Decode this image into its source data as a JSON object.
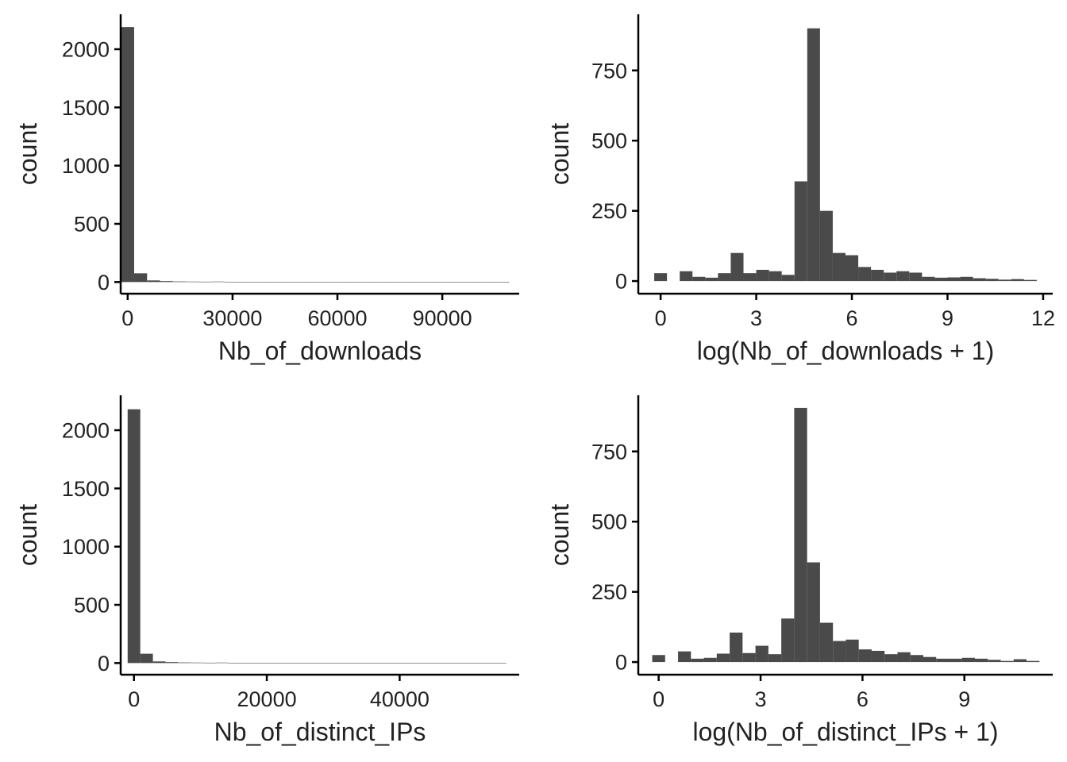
{
  "chart_data": [
    {
      "type": "bar",
      "xlabel": "Nb_of_downloads",
      "ylabel": "count",
      "xlim": [
        -2000,
        112000
      ],
      "ylim": [
        -100,
        2300
      ],
      "x_ticks": [
        0,
        30000,
        60000,
        90000
      ],
      "x_tick_labels": [
        "0",
        "30000",
        "60000",
        "90000"
      ],
      "y_ticks": [
        0,
        500,
        1000,
        1500,
        2000
      ],
      "y_tick_labels": [
        "0",
        "500",
        "1000",
        "1500",
        "2000"
      ],
      "bin_start": -1850,
      "bin_width": 3700,
      "values": [
        2190,
        75,
        14,
        8,
        5,
        4,
        3,
        4,
        2,
        2,
        2,
        2,
        1,
        2,
        1,
        1,
        1,
        1,
        1,
        1,
        1,
        1,
        1,
        2,
        1,
        1,
        1,
        1,
        1,
        1
      ]
    },
    {
      "type": "bar",
      "xlabel": "log(Nb_of_downloads + 1)",
      "ylabel": "count",
      "xlim": [
        -0.7,
        12.3
      ],
      "ylim": [
        -45,
        950
      ],
      "x_ticks": [
        0,
        3,
        6,
        9,
        12
      ],
      "x_tick_labels": [
        "0",
        "3",
        "6",
        "9",
        "12"
      ],
      "y_ticks": [
        0,
        250,
        500,
        750
      ],
      "y_tick_labels": [
        "0",
        "250",
        "500",
        "750"
      ],
      "bin_start": -0.2,
      "bin_width": 0.4,
      "values": [
        28,
        0,
        35,
        15,
        12,
        28,
        100,
        28,
        40,
        35,
        22,
        355,
        900,
        250,
        100,
        92,
        50,
        40,
        30,
        35,
        30,
        15,
        12,
        13,
        15,
        10,
        8,
        5,
        7,
        4
      ]
    },
    {
      "type": "bar",
      "xlabel": "Nb_of_distinct_IPs",
      "ylabel": "count",
      "xlim": [
        -2000,
        58000
      ],
      "ylim": [
        -100,
        2300
      ],
      "x_ticks": [
        0,
        20000,
        40000
      ],
      "x_tick_labels": [
        "0",
        "20000",
        "40000"
      ],
      "y_ticks": [
        0,
        500,
        1000,
        1500,
        2000
      ],
      "y_tick_labels": [
        "0",
        "500",
        "1000",
        "1500",
        "2000"
      ],
      "bin_start": -950,
      "bin_width": 1900,
      "values": [
        2180,
        80,
        14,
        8,
        5,
        4,
        3,
        4,
        2,
        2,
        2,
        2,
        1,
        2,
        1,
        1,
        1,
        1,
        1,
        1,
        1,
        1,
        1,
        2,
        1,
        1,
        1,
        1,
        1,
        1
      ]
    },
    {
      "type": "bar",
      "xlabel": "log(Nb_of_distinct_IPs + 1)",
      "ylabel": "count",
      "xlim": [
        -0.6,
        11.6
      ],
      "ylim": [
        -45,
        950
      ],
      "x_ticks": [
        0,
        3,
        6,
        9
      ],
      "x_tick_labels": [
        "0",
        "3",
        "6",
        "9"
      ],
      "y_ticks": [
        0,
        250,
        500,
        750
      ],
      "y_tick_labels": [
        "0",
        "250",
        "500",
        "750"
      ],
      "bin_start": -0.19,
      "bin_width": 0.38,
      "values": [
        25,
        0,
        38,
        12,
        15,
        30,
        105,
        32,
        58,
        28,
        155,
        905,
        355,
        140,
        75,
        80,
        45,
        40,
        28,
        35,
        25,
        18,
        12,
        12,
        15,
        12,
        8,
        4,
        10,
        4
      ]
    }
  ]
}
